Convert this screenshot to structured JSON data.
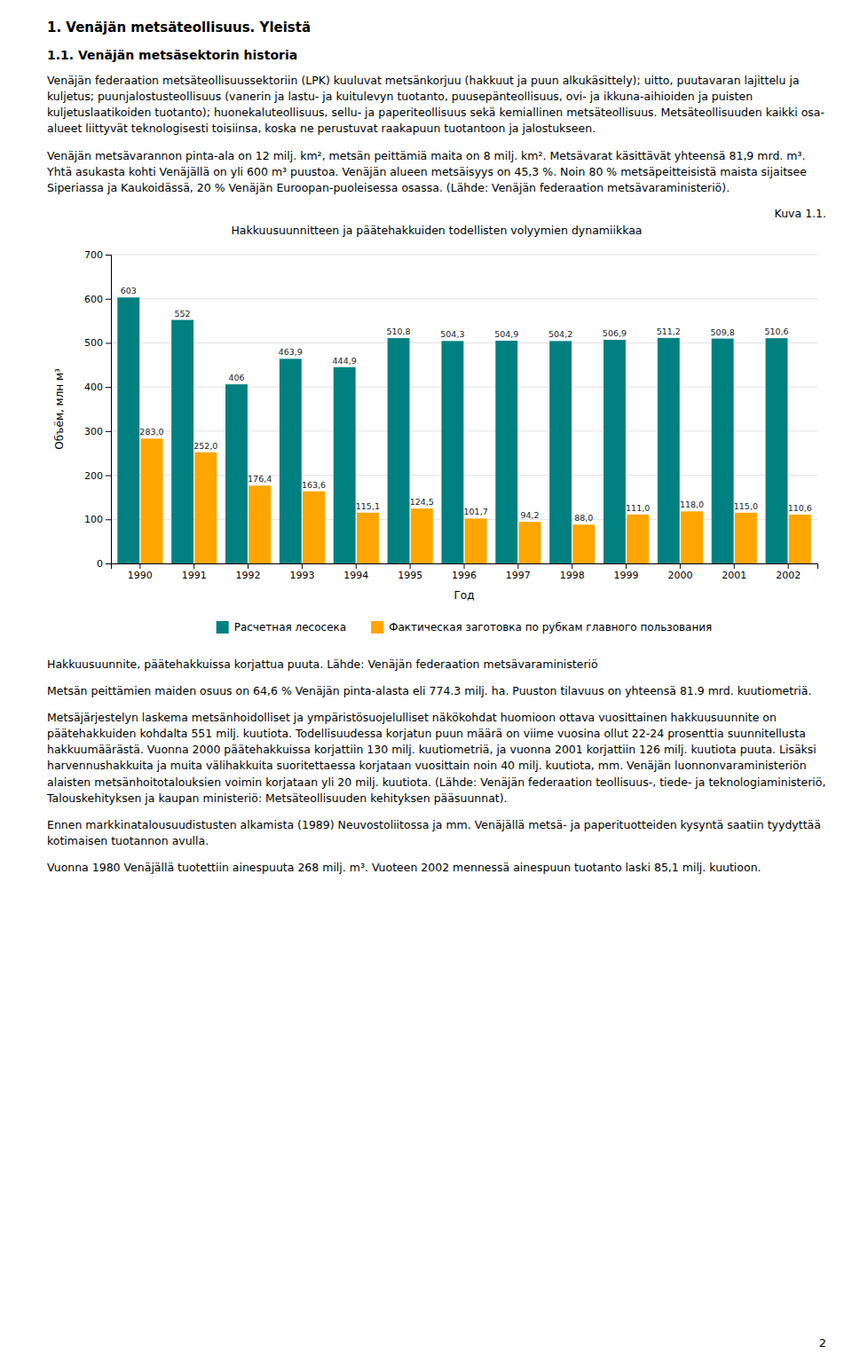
{
  "page_title": "1. Venäjän metsäteollisuus. Yleistä",
  "section_title": "1.1. Venäjän metsäsektorin historia",
  "paragraphs_before": [
    "Venäjän federaation metsäteollisuussektoriin (LPK) kuuluvat metsänkorjuu (hakkuut ja puun alkukäsittely); uitto, puutavaran lajittelu ja kuljetus; puunjalostusteollisuus (vanerin ja lastu- ja kuitulevyn tuotanto, puusepänteollisuus, ovi- ja ikkuna-aihioiden ja puisten kuljetuslaatikoiden tuotanto); huonekaluteollisuus, sellu- ja paperiteollisuus sekä kemiallinen metsäteollisuus. Metsäteollisuuden kaikki osa-alueet liittyvät teknologisesti toisiinsa, koska ne perustuvat raakapuun tuotantoon ja jalostukseen.",
    "Venäjän metsävarannon pinta-ala on 12 milj. km², metsän peittämiä maita on 8 milj. km². Metsävarat käsittävät yhteensä 81,9 mrd. m³. Yhtä asukasta kohti Venäjällä on yli 600 m³ puustoa. Venäjän alueen metsäisyys on 45,3 %. Noin 80 % metsäpeitteisistä maista sijaitsee Siperiassa ja Kaukoidässä, 20 % Venäjän Euroopan-puoleisessa osassa. (Lähde: Venäjän federaation metsävaraministeriö)."
  ],
  "figure_label": "Kuva 1.1.",
  "caption": "Hakkuusuunnite, päätehakkuissa korjattua puuta. Lähde: Venäjän federaation metsävaraministeriö",
  "paragraphs_after": [
    "Metsän peittämien maiden osuus on 64,6 % Venäjän pinta-alasta eli 774.3 milj. ha. Puuston tilavuus on yhteensä 81.9 mrd. kuutiometriä.",
    "Metsäjärjestelyn laskema metsänhoidolliset ja ympäristösuojelulliset näkökohdat huomioon ottava vuosittainen hakkuusuunnite on päätehakkuiden kohdalta 551 milj. kuutiota. Todellisuudessa korjatun puun määrä on viime vuosina ollut 22-24 prosenttia suunnitellusta hakkuumäärästä. Vuonna 2000 päätehakkuissa korjattiin 130 milj. kuutiometriä, ja vuonna 2001 korjattiin 126 milj. kuutiota puuta. Lisäksi harvennushakkuita ja muita välihakkuita suoritettaessa korjataan vuosittain noin 40 milj. kuutiota, mm. Venäjän luonnonvaraministeriön alaisten metsänhoitotalouksien voimin korjataan yli 20 milj. kuutiota. (Lähde: Venäjän federaation teollisuus-, tiede- ja teknologiaministeriö, Talouskehityksen ja kaupan ministeriö: Metsäteollisuuden kehityksen pääsuunnat).",
    "Ennen markkinatalousuudistusten alkamista (1989) Neuvostoliitossa ja mm. Venäjällä metsä- ja paperituotteiden kysyntä saatiin tyydyttää kotimaisen tuotannon avulla.",
    "Vuonna 1980 Venäjällä tuotettiin ainespuuta 268 milj. m³. Vuoteen 2002 mennessä ainespuun tuotanto laski 85,1 milj. kuutioon."
  ],
  "page_number": "2",
  "chart_data": {
    "type": "bar",
    "title": "Hakkuusuunnitteen ja päätehakkuiden todellisten volyymien dynamiikkaa",
    "xlabel": "Год",
    "ylabel": "Объём, млн м³",
    "categories": [
      "1990",
      "1991",
      "1992",
      "1993",
      "1994",
      "1995",
      "1996",
      "1997",
      "1998",
      "1999",
      "2000",
      "2001",
      "2002"
    ],
    "series": [
      {
        "name": "Расчетная лесосека",
        "color": "#008080",
        "values": [
          603.0,
          552.0,
          406.0,
          463.9,
          444.9,
          510.8,
          504.3,
          504.9,
          504.2,
          506.9,
          511.2,
          509.8,
          510.6
        ],
        "value_labels": [
          "603",
          "552",
          "406",
          "463,9",
          "444,9",
          "510,8",
          "504,3",
          "504,9",
          "504,2",
          "506,9",
          "511,2",
          "509,8",
          "510,6"
        ]
      },
      {
        "name": "Фактическая заготовка по рубкам главного пользования",
        "color": "#FFA500",
        "values": [
          283.0,
          252.0,
          176.4,
          163.6,
          115.1,
          124.5,
          101.7,
          94.2,
          88.0,
          111.0,
          118.0,
          115.0,
          110.6
        ],
        "value_labels": [
          "283,0",
          "252,0",
          "176,4",
          "163,6",
          "115,1",
          "124,5",
          "101,7",
          "94,2",
          "88,0",
          "111,0",
          "118,0",
          "115,0",
          "110,6"
        ]
      }
    ],
    "ylim": [
      0,
      700
    ],
    "yticks": [
      0,
      100,
      200,
      300,
      400,
      500,
      600,
      700
    ],
    "grid": true,
    "legend": "bottom",
    "data_labels": true
  }
}
